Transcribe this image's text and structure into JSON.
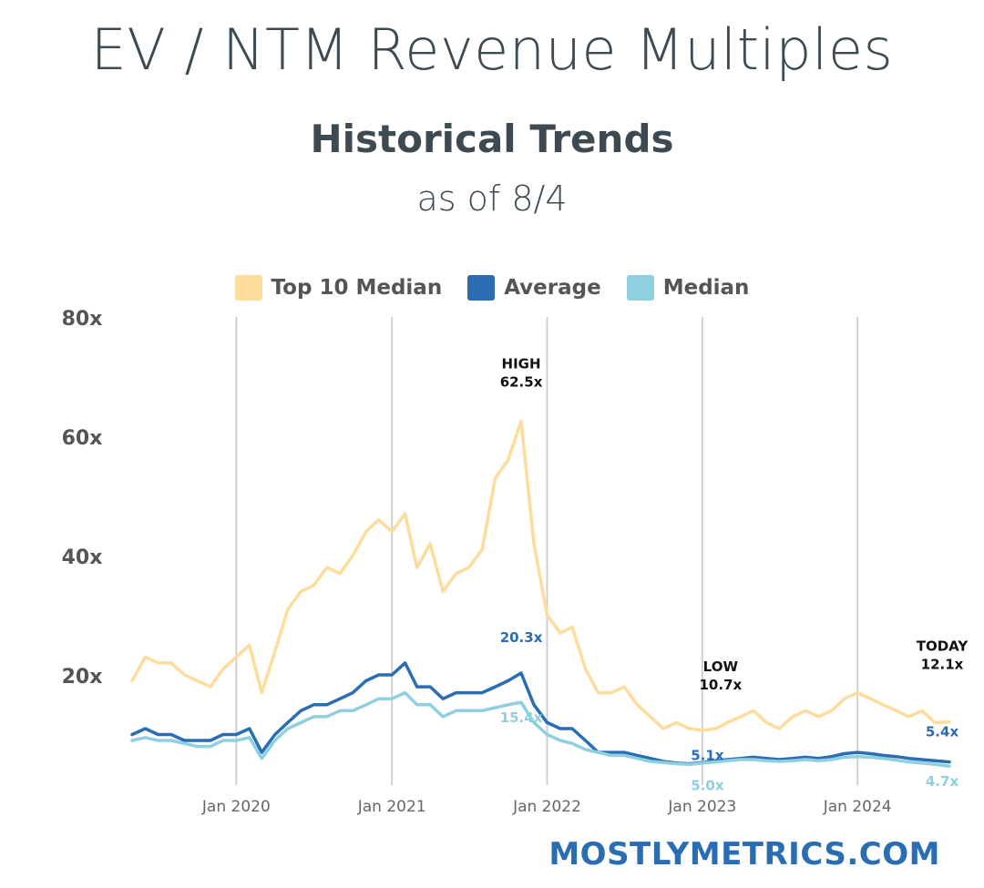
{
  "header": {
    "title": "EV / NTM Revenue Multiples",
    "subtitle": "Historical Trends",
    "as_of": "as of 8/4"
  },
  "footer": {
    "brand": "MOSTLYMETRICS.COM"
  },
  "colors": {
    "top10": "#fddc9c",
    "average": "#2a6db3",
    "median": "#8fd0e0",
    "text": "#3d4a52",
    "axis": "#555555",
    "grid": "#d0d0d0"
  },
  "legend": [
    {
      "label": "Top 10 Median",
      "color": "#fddc9c"
    },
    {
      "label": "Average",
      "color": "#2a6db3"
    },
    {
      "label": "Median",
      "color": "#8fd0e0"
    }
  ],
  "chart_data": {
    "type": "line",
    "title": "",
    "xlabel": "",
    "ylabel": "",
    "ylim": [
      0,
      80
    ],
    "xlim": [
      "2019-05-01",
      "2024-08-04"
    ],
    "y_ticks": [
      {
        "value": 80,
        "label": "80x"
      },
      {
        "value": 60,
        "label": "60x"
      },
      {
        "value": 40,
        "label": "40x"
      },
      {
        "value": 20,
        "label": "20x"
      }
    ],
    "x_ticks": [
      {
        "date": "2020-01-01",
        "label": "Jan 2020"
      },
      {
        "date": "2021-01-01",
        "label": "Jan 2021"
      },
      {
        "date": "2022-01-01",
        "label": "Jan 2022"
      },
      {
        "date": "2023-01-01",
        "label": "Jan 2023"
      },
      {
        "date": "2024-01-01",
        "label": "Jan 2024"
      }
    ],
    "grid": "vertical",
    "legend_position": "top",
    "series": [
      {
        "name": "Top 10 Median",
        "color": "#fddc9c",
        "points": [
          [
            "2019-05-01",
            19
          ],
          [
            "2019-06-01",
            23
          ],
          [
            "2019-07-01",
            22
          ],
          [
            "2019-08-01",
            22
          ],
          [
            "2019-09-01",
            20
          ],
          [
            "2019-10-01",
            19
          ],
          [
            "2019-11-01",
            18
          ],
          [
            "2019-12-01",
            21
          ],
          [
            "2020-01-01",
            23
          ],
          [
            "2020-02-01",
            25
          ],
          [
            "2020-03-01",
            17
          ],
          [
            "2020-04-01",
            24
          ],
          [
            "2020-05-01",
            31
          ],
          [
            "2020-06-01",
            34
          ],
          [
            "2020-07-01",
            35
          ],
          [
            "2020-08-01",
            38
          ],
          [
            "2020-09-01",
            37
          ],
          [
            "2020-10-01",
            40
          ],
          [
            "2020-11-01",
            44
          ],
          [
            "2020-12-01",
            46
          ],
          [
            "2021-01-01",
            44
          ],
          [
            "2021-02-01",
            47
          ],
          [
            "2021-03-01",
            38
          ],
          [
            "2021-04-01",
            42
          ],
          [
            "2021-05-01",
            34
          ],
          [
            "2021-06-01",
            37
          ],
          [
            "2021-07-01",
            38
          ],
          [
            "2021-08-01",
            41
          ],
          [
            "2021-09-01",
            53
          ],
          [
            "2021-10-01",
            56
          ],
          [
            "2021-11-01",
            62.5
          ],
          [
            "2021-12-01",
            42
          ],
          [
            "2022-01-01",
            30
          ],
          [
            "2022-02-01",
            27
          ],
          [
            "2022-03-01",
            28
          ],
          [
            "2022-04-01",
            21
          ],
          [
            "2022-05-01",
            17
          ],
          [
            "2022-06-01",
            17
          ],
          [
            "2022-07-01",
            18
          ],
          [
            "2022-08-01",
            15
          ],
          [
            "2022-09-01",
            13
          ],
          [
            "2022-10-01",
            11
          ],
          [
            "2022-11-01",
            12
          ],
          [
            "2022-12-01",
            11
          ],
          [
            "2023-01-01",
            10.7
          ],
          [
            "2023-02-01",
            11
          ],
          [
            "2023-03-01",
            12
          ],
          [
            "2023-04-01",
            13
          ],
          [
            "2023-05-01",
            14
          ],
          [
            "2023-06-01",
            12
          ],
          [
            "2023-07-01",
            11
          ],
          [
            "2023-08-01",
            13
          ],
          [
            "2023-09-01",
            14
          ],
          [
            "2023-10-01",
            13
          ],
          [
            "2023-11-01",
            14
          ],
          [
            "2023-12-01",
            16
          ],
          [
            "2024-01-01",
            17
          ],
          [
            "2024-02-01",
            16
          ],
          [
            "2024-03-01",
            15
          ],
          [
            "2024-04-01",
            14
          ],
          [
            "2024-05-01",
            13
          ],
          [
            "2024-06-01",
            14
          ],
          [
            "2024-07-01",
            12
          ],
          [
            "2024-08-04",
            12.1
          ]
        ]
      },
      {
        "name": "Average",
        "color": "#2a6db3",
        "points": [
          [
            "2019-05-01",
            10
          ],
          [
            "2019-06-01",
            11
          ],
          [
            "2019-07-01",
            10
          ],
          [
            "2019-08-01",
            10
          ],
          [
            "2019-09-01",
            9
          ],
          [
            "2019-10-01",
            9
          ],
          [
            "2019-11-01",
            9
          ],
          [
            "2019-12-01",
            10
          ],
          [
            "2020-01-01",
            10
          ],
          [
            "2020-02-01",
            11
          ],
          [
            "2020-03-01",
            7
          ],
          [
            "2020-04-01",
            10
          ],
          [
            "2020-05-01",
            12
          ],
          [
            "2020-06-01",
            14
          ],
          [
            "2020-07-01",
            15
          ],
          [
            "2020-08-01",
            15
          ],
          [
            "2020-09-01",
            16
          ],
          [
            "2020-10-01",
            17
          ],
          [
            "2020-11-01",
            19
          ],
          [
            "2020-12-01",
            20
          ],
          [
            "2021-01-01",
            20
          ],
          [
            "2021-02-01",
            22
          ],
          [
            "2021-03-01",
            18
          ],
          [
            "2021-04-01",
            18
          ],
          [
            "2021-05-01",
            16
          ],
          [
            "2021-06-01",
            17
          ],
          [
            "2021-07-01",
            17
          ],
          [
            "2021-08-01",
            17
          ],
          [
            "2021-09-01",
            18
          ],
          [
            "2021-10-01",
            19
          ],
          [
            "2021-11-01",
            20.3
          ],
          [
            "2021-12-01",
            15
          ],
          [
            "2022-01-01",
            12
          ],
          [
            "2022-02-01",
            11
          ],
          [
            "2022-03-01",
            11
          ],
          [
            "2022-04-01",
            9
          ],
          [
            "2022-05-01",
            7
          ],
          [
            "2022-06-01",
            7
          ],
          [
            "2022-07-01",
            7
          ],
          [
            "2022-08-01",
            6.5
          ],
          [
            "2022-09-01",
            6
          ],
          [
            "2022-10-01",
            5.5
          ],
          [
            "2022-11-01",
            5.2
          ],
          [
            "2022-12-01",
            5.1
          ],
          [
            "2023-01-01",
            5.3
          ],
          [
            "2023-02-01",
            5.6
          ],
          [
            "2023-03-01",
            5.8
          ],
          [
            "2023-04-01",
            6
          ],
          [
            "2023-05-01",
            6.2
          ],
          [
            "2023-06-01",
            6
          ],
          [
            "2023-07-01",
            5.8
          ],
          [
            "2023-08-01",
            6
          ],
          [
            "2023-09-01",
            6.2
          ],
          [
            "2023-10-01",
            6
          ],
          [
            "2023-11-01",
            6.3
          ],
          [
            "2023-12-01",
            6.8
          ],
          [
            "2024-01-01",
            7
          ],
          [
            "2024-02-01",
            6.8
          ],
          [
            "2024-03-01",
            6.5
          ],
          [
            "2024-04-01",
            6.3
          ],
          [
            "2024-05-01",
            6
          ],
          [
            "2024-06-01",
            5.8
          ],
          [
            "2024-07-01",
            5.6
          ],
          [
            "2024-08-04",
            5.4
          ]
        ]
      },
      {
        "name": "Median",
        "color": "#8fd0e0",
        "points": [
          [
            "2019-05-01",
            9
          ],
          [
            "2019-06-01",
            9.5
          ],
          [
            "2019-07-01",
            9
          ],
          [
            "2019-08-01",
            9
          ],
          [
            "2019-09-01",
            8.5
          ],
          [
            "2019-10-01",
            8
          ],
          [
            "2019-11-01",
            8
          ],
          [
            "2019-12-01",
            9
          ],
          [
            "2020-01-01",
            9
          ],
          [
            "2020-02-01",
            9.5
          ],
          [
            "2020-03-01",
            6
          ],
          [
            "2020-04-01",
            9
          ],
          [
            "2020-05-01",
            11
          ],
          [
            "2020-06-01",
            12
          ],
          [
            "2020-07-01",
            13
          ],
          [
            "2020-08-01",
            13
          ],
          [
            "2020-09-01",
            14
          ],
          [
            "2020-10-01",
            14
          ],
          [
            "2020-11-01",
            15
          ],
          [
            "2020-12-01",
            16
          ],
          [
            "2021-01-01",
            16
          ],
          [
            "2021-02-01",
            17
          ],
          [
            "2021-03-01",
            15
          ],
          [
            "2021-04-01",
            15
          ],
          [
            "2021-05-01",
            13
          ],
          [
            "2021-06-01",
            14
          ],
          [
            "2021-07-01",
            14
          ],
          [
            "2021-08-01",
            14
          ],
          [
            "2021-09-01",
            14.5
          ],
          [
            "2021-10-01",
            15
          ],
          [
            "2021-11-01",
            15.4
          ],
          [
            "2021-12-01",
            12
          ],
          [
            "2022-01-01",
            10
          ],
          [
            "2022-02-01",
            9
          ],
          [
            "2022-03-01",
            8.5
          ],
          [
            "2022-04-01",
            7.5
          ],
          [
            "2022-05-01",
            7
          ],
          [
            "2022-06-01",
            6.5
          ],
          [
            "2022-07-01",
            6.5
          ],
          [
            "2022-08-01",
            6
          ],
          [
            "2022-09-01",
            5.5
          ],
          [
            "2022-10-01",
            5.3
          ],
          [
            "2022-11-01",
            5.1
          ],
          [
            "2022-12-01",
            5.0
          ],
          [
            "2023-01-01",
            5.2
          ],
          [
            "2023-02-01",
            5.4
          ],
          [
            "2023-03-01",
            5.6
          ],
          [
            "2023-04-01",
            5.8
          ],
          [
            "2023-05-01",
            5.8
          ],
          [
            "2023-06-01",
            5.6
          ],
          [
            "2023-07-01",
            5.5
          ],
          [
            "2023-08-01",
            5.6
          ],
          [
            "2023-09-01",
            5.8
          ],
          [
            "2023-10-01",
            5.6
          ],
          [
            "2023-11-01",
            5.8
          ],
          [
            "2023-12-01",
            6.2
          ],
          [
            "2024-01-01",
            6.3
          ],
          [
            "2024-02-01",
            6.2
          ],
          [
            "2024-03-01",
            6
          ],
          [
            "2024-04-01",
            5.7
          ],
          [
            "2024-05-01",
            5.4
          ],
          [
            "2024-06-01",
            5.2
          ],
          [
            "2024-07-01",
            5
          ],
          [
            "2024-08-04",
            4.7
          ]
        ]
      }
    ],
    "annotations": [
      {
        "name": "high",
        "lines": [
          "HIGH",
          "62.5x"
        ],
        "date": "2021-11-01",
        "value": 62.5,
        "color": "#111111"
      },
      {
        "name": "low",
        "lines": [
          "LOW",
          "10.7x"
        ],
        "date": "2023-01-01",
        "value": 10.7,
        "color": "#111111"
      },
      {
        "name": "today",
        "lines": [
          "TODAY",
          "12.1x"
        ],
        "date": "2024-08-04",
        "value": 12.1,
        "color": "#111111"
      },
      {
        "name": "avg-high",
        "lines": [
          "20.3x"
        ],
        "date": "2021-11-01",
        "value": 20.3,
        "color": "#2a6db3"
      },
      {
        "name": "median-high",
        "lines": [
          "15.4x"
        ],
        "date": "2021-11-01",
        "value": 15.4,
        "color": "#8fd0e0"
      },
      {
        "name": "avg-low",
        "lines": [
          "5.1x"
        ],
        "date": "2022-12-01",
        "value": 5.1,
        "color": "#2a6db3"
      },
      {
        "name": "median-low",
        "lines": [
          "5.0x"
        ],
        "date": "2022-12-01",
        "value": 5.0,
        "color": "#8fd0e0"
      },
      {
        "name": "avg-today",
        "lines": [
          "5.4x"
        ],
        "date": "2024-08-04",
        "value": 5.4,
        "color": "#2a6db3"
      },
      {
        "name": "median-today",
        "lines": [
          "4.7x"
        ],
        "date": "2024-08-04",
        "value": 4.7,
        "color": "#8fd0e0"
      }
    ]
  }
}
